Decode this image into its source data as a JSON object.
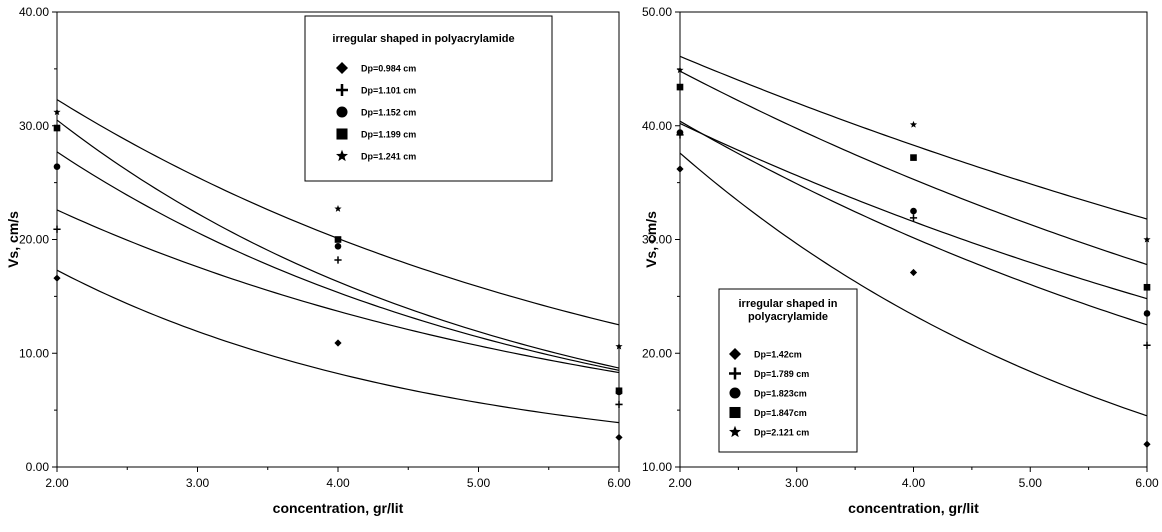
{
  "chart_data": [
    {
      "type": "scatter",
      "xlabel": "concentration, gr/lit",
      "ylabel": "Vs, cm/s",
      "xlim": [
        2.0,
        6.0
      ],
      "ylim": [
        0.0,
        40.0
      ],
      "xticks": [
        "2.00",
        "3.00",
        "4.00",
        "5.00",
        "6.00"
      ],
      "yticks": [
        "0.00",
        "10.00",
        "20.00",
        "30.00",
        "40.00"
      ],
      "grid": false,
      "legend_position": "top-right",
      "legend_title": "irregular shaped in polyacrylamide",
      "series": [
        {
          "name": "Dp=0.984 cm",
          "marker": "diamond",
          "points": [
            [
              2,
              16.6
            ],
            [
              4,
              10.9
            ],
            [
              6,
              2.6
            ]
          ],
          "fit": [
            17.3,
            3.9
          ]
        },
        {
          "name": "Dp=1.101 cm",
          "marker": "plus",
          "points": [
            [
              2,
              20.9
            ],
            [
              4,
              18.2
            ],
            [
              6,
              5.5
            ]
          ],
          "fit": [
            22.6,
            8.3
          ]
        },
        {
          "name": "Dp=1.152 cm",
          "marker": "circle",
          "points": [
            [
              2,
              26.4
            ],
            [
              4,
              19.4
            ],
            [
              6,
              6.6
            ]
          ],
          "fit": [
            27.7,
            8.5
          ]
        },
        {
          "name": "Dp=1.199 cm",
          "marker": "square",
          "points": [
            [
              2,
              29.8
            ],
            [
              4,
              20.0
            ],
            [
              6,
              6.7
            ]
          ],
          "fit": [
            30.5,
            8.7
          ]
        },
        {
          "name": "Dp=1.241 cm",
          "marker": "star",
          "points": [
            [
              2,
              31.2
            ],
            [
              4,
              22.7
            ],
            [
              6,
              10.6
            ]
          ],
          "fit": [
            32.3,
            12.5
          ]
        }
      ]
    },
    {
      "type": "scatter",
      "xlabel": "concentration, gr/lit",
      "ylabel": "Vs, cm/s",
      "xlim": [
        2.0,
        6.0
      ],
      "ylim": [
        10.0,
        50.0
      ],
      "xticks": [
        "2.00",
        "3.00",
        "4.00",
        "5.00",
        "6.00"
      ],
      "yticks": [
        "10.00",
        "20.00",
        "30.00",
        "40.00",
        "50.00"
      ],
      "grid": false,
      "legend_position": "bottom-left",
      "legend_title_lines": [
        "irregular shaped in",
        "polyacrylamide"
      ],
      "series": [
        {
          "name": "Dp=1.42cm",
          "marker": "diamond",
          "points": [
            [
              2,
              36.2
            ],
            [
              4,
              27.1
            ],
            [
              6,
              12.0
            ]
          ],
          "fit": [
            37.6,
            14.5
          ]
        },
        {
          "name": "Dp=1.789 cm",
          "marker": "plus",
          "points": [
            [
              2,
              39.2
            ],
            [
              4,
              31.9
            ],
            [
              6,
              20.7
            ]
          ],
          "fit": [
            40.4,
            22.5
          ]
        },
        {
          "name": "Dp=1.823cm",
          "marker": "circle",
          "points": [
            [
              2,
              39.4
            ],
            [
              4,
              32.5
            ],
            [
              6,
              23.5
            ]
          ],
          "fit": [
            40.2,
            24.8
          ]
        },
        {
          "name": "Dp=1.847cm",
          "marker": "square",
          "points": [
            [
              2,
              43.4
            ],
            [
              4,
              37.2
            ],
            [
              6,
              25.8
            ]
          ],
          "fit": [
            44.8,
            27.8
          ]
        },
        {
          "name": "Dp=2.121 cm",
          "marker": "star",
          "points": [
            [
              2,
              44.9
            ],
            [
              4,
              40.1
            ],
            [
              6,
              30.0
            ]
          ],
          "fit": [
            46.1,
            31.8
          ]
        }
      ]
    }
  ]
}
